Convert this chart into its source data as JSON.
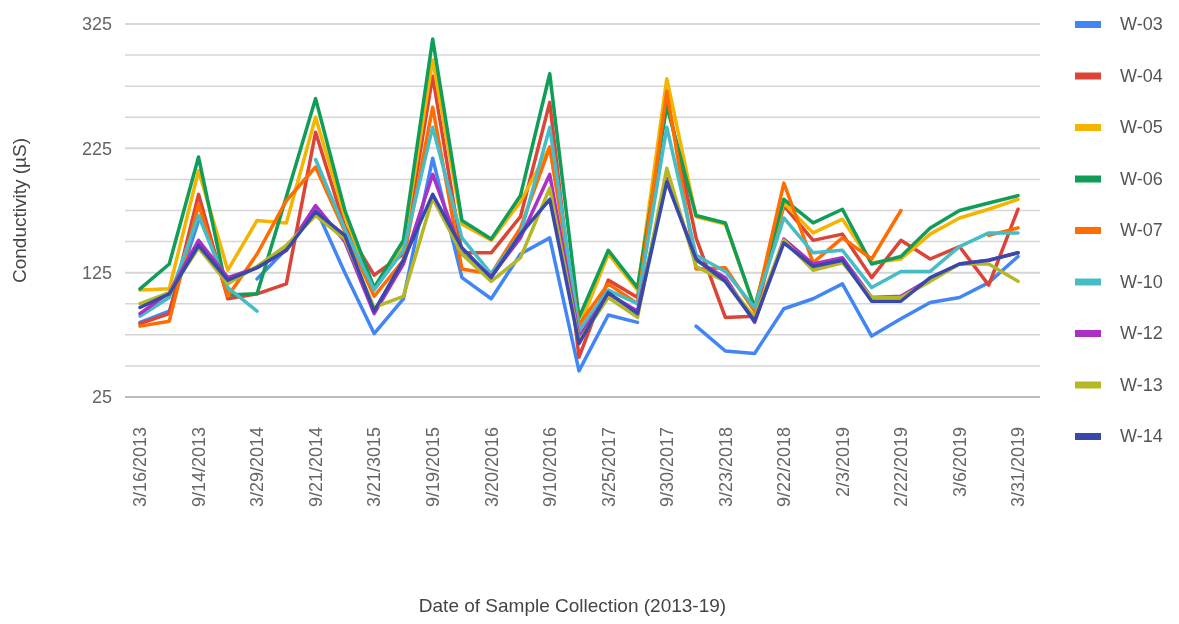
{
  "chart_data": {
    "type": "line",
    "xlabel": "Date of Sample Collection (2013-19)",
    "ylabel": "Conductivity (µS)",
    "categories": [
      "3/16/2013",
      null,
      "9/14/2013",
      null,
      "3/29/2014",
      null,
      "9/21/2014",
      null,
      "3/21/3015",
      null,
      "9/19/2015",
      null,
      "3/20/2016",
      null,
      "9/10/2016",
      null,
      "3/25/2017",
      null,
      "9/30/2017",
      null,
      "3/23/2018",
      null,
      "9/22/2018",
      null,
      "2/3/2019",
      null,
      "2/22/2019",
      null,
      "3/6/2019",
      null,
      "3/31/2019"
    ],
    "ylim": [
      25,
      325
    ],
    "yticks": [
      25,
      {
        "value": 50,
        "label": null
      },
      {
        "value": 75,
        "label": null
      },
      {
        "value": 100,
        "label": null
      },
      125,
      {
        "value": 150,
        "label": null
      },
      {
        "value": 175,
        "label": null
      },
      {
        "value": 200,
        "label": null
      },
      225,
      {
        "value": 250,
        "label": null
      },
      {
        "value": 275,
        "label": null
      },
      {
        "value": 300,
        "label": null
      },
      325
    ],
    "grid": "y",
    "legend": "right",
    "marker": "none",
    "line_style": "solid",
    "series": [
      {
        "name": "W-03",
        "color": "#4285f4",
        "values": [
          85,
          94,
          167,
          null,
          120,
          144,
          177,
          125,
          76,
          104,
          217,
          121,
          104,
          140,
          153,
          46,
          91,
          85,
          null,
          82,
          62,
          60,
          96,
          104,
          116,
          74,
          88,
          101,
          105,
          117,
          138
        ]
      },
      {
        "name": "W-04",
        "color": "#db4437",
        "values": [
          84,
          92,
          188,
          104,
          108,
          116,
          238,
          162,
          123,
          140,
          283,
          141,
          141,
          170,
          262,
          57,
          119,
          105,
          265,
          153,
          89,
          90,
          179,
          151,
          156,
          121,
          151,
          136,
          146,
          115,
          176
        ]
      },
      {
        "name": "W-05",
        "color": "#f4b400",
        "values": [
          111,
          112,
          207,
          127,
          167,
          165,
          250,
          170,
          112,
          148,
          296,
          164,
          151,
          182,
          226,
          81,
          140,
          111,
          281,
          170,
          164,
          97,
          181,
          157,
          168,
          133,
          136,
          156,
          169,
          176,
          184
        ]
      },
      {
        "name": "W-06",
        "color": "#0f9d58",
        "values": [
          112,
          132,
          218,
          107,
          108,
          186,
          265,
          175,
          113,
          151,
          313,
          167,
          152,
          187,
          285,
          89,
          143,
          113,
          259,
          171,
          165,
          97,
          184,
          165,
          176,
          132,
          138,
          161,
          175,
          181,
          187
        ]
      },
      {
        "name": "W-07",
        "color": "#ff6d00",
        "values": [
          82,
          86,
          180,
          106,
          140,
          183,
          210,
          158,
          106,
          135,
          258,
          128,
          124,
          161,
          226,
          83,
          116,
          100,
          271,
          128,
          129,
          94,
          197,
          133,
          153,
          136,
          175,
          null,
          null,
          155,
          161
        ]
      },
      {
        "name": "W-10",
        "color": "#46bdc6",
        "values": [
          90,
          105,
          171,
          113,
          94,
          null,
          216,
          160,
          111,
          143,
          242,
          153,
          124,
          156,
          242,
          78,
          111,
          100,
          242,
          139,
          126,
          97,
          169,
          141,
          143,
          113,
          126,
          126,
          146,
          157,
          157
        ]
      },
      {
        "name": "W-12",
        "color": "#ab30c4",
        "values": [
          92,
          109,
          151,
          121,
          129,
          143,
          179,
          150,
          92,
          132,
          204,
          140,
          122,
          153,
          204,
          73,
          108,
          94,
          201,
          135,
          121,
          85,
          152,
          132,
          137,
          105,
          106,
          120,
          132,
          135,
          141
        ]
      },
      {
        "name": "W-13",
        "color": "#b5b824",
        "values": [
          100,
          109,
          145,
          116,
          130,
          147,
          171,
          152,
          97,
          106,
          185,
          140,
          118,
          137,
          193,
          70,
          105,
          89,
          209,
          130,
          118,
          89,
          151,
          127,
          133,
          105,
          105,
          118,
          132,
          132,
          118
        ]
      },
      {
        "name": "W-14",
        "color": "#3949ab",
        "values": [
          97,
          108,
          147,
          119,
          129,
          143,
          174,
          155,
          94,
          135,
          188,
          145,
          121,
          156,
          184,
          68,
          109,
          92,
          198,
          136,
          118,
          86,
          149,
          130,
          135,
          102,
          102,
          121,
          132,
          135,
          141
        ]
      }
    ]
  }
}
